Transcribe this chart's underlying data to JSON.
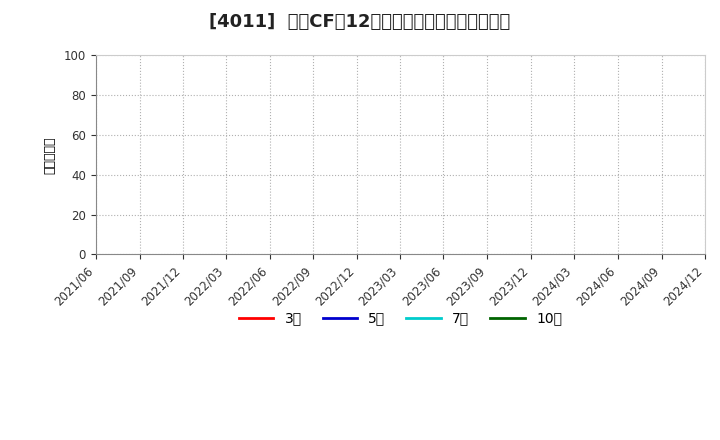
{
  "title": "[4011]  投資CFの12か月移動合計の平均値の推移",
  "ylabel": "（百万円）",
  "ylim": [
    0,
    100
  ],
  "yticks": [
    0,
    20,
    40,
    60,
    80,
    100
  ],
  "xstart": "2021-06-01",
  "xend": "2024-12-01",
  "xtick_dates": [
    "2021-06-01",
    "2021-09-01",
    "2021-12-01",
    "2022-03-01",
    "2022-06-01",
    "2022-09-01",
    "2022-12-01",
    "2023-03-01",
    "2023-06-01",
    "2023-09-01",
    "2023-12-01",
    "2024-03-01",
    "2024-06-01",
    "2024-09-01",
    "2024-12-01"
  ],
  "xtick_labels": [
    "2021/06",
    "2021/09",
    "2021/12",
    "2022/03",
    "2022/06",
    "2022/09",
    "2022/12",
    "2023/03",
    "2023/06",
    "2023/09",
    "2023/12",
    "2024/03",
    "2024/06",
    "2024/09",
    "2024/12"
  ],
  "legend_items": [
    {
      "label": "3年",
      "color": "#ff0000",
      "linewidth": 2
    },
    {
      "label": "5年",
      "color": "#0000cd",
      "linewidth": 2
    },
    {
      "label": "7年",
      "color": "#00cccc",
      "linewidth": 2
    },
    {
      "label": "10年",
      "color": "#006400",
      "linewidth": 2
    }
  ],
  "grid_color": "#b0b0b0",
  "grid_linestyle": "dotted",
  "background_color": "#ffffff",
  "plot_bg_color": "#ffffff",
  "title_fontsize": 13,
  "tick_fontsize": 8.5,
  "ylabel_fontsize": 9,
  "legend_fontsize": 10
}
